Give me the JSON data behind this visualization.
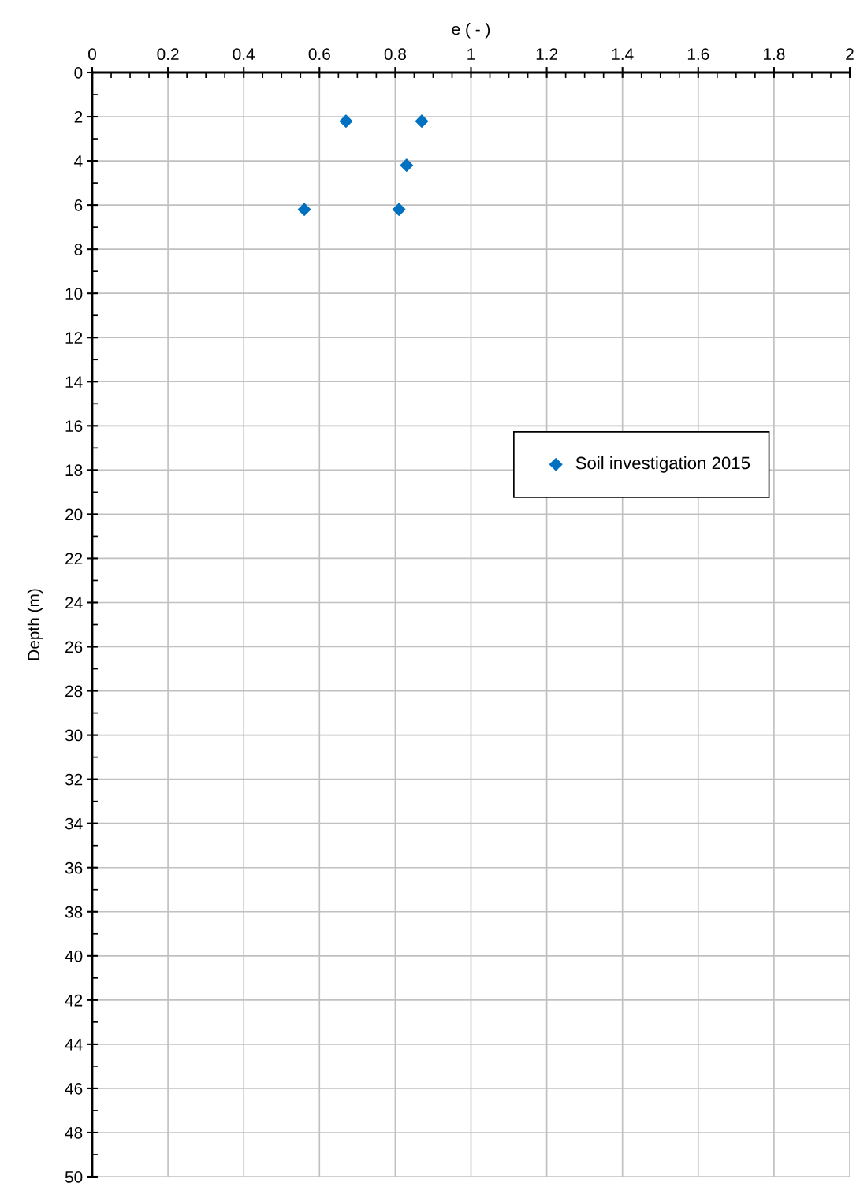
{
  "chart_data": {
    "type": "scatter",
    "xlabel": "e ( - )",
    "ylabel": "Depth (m)",
    "x": [
      0.67,
      0.87,
      0.83,
      0.56,
      0.81
    ],
    "series": [
      {
        "name": "Soil investigation 2015",
        "color": "#0070c0",
        "values": [
          2.2,
          2.2,
          4.2,
          6.2,
          6.2
        ]
      }
    ],
    "xlim": [
      0,
      2
    ],
    "xticks": [
      0,
      0.2,
      0.4,
      0.6,
      0.8,
      1,
      1.2,
      1.4,
      1.6,
      1.8,
      2
    ],
    "ylim": [
      50,
      0
    ],
    "yticks": [
      0,
      2,
      4,
      6,
      8,
      10,
      12,
      14,
      16,
      18,
      20,
      22,
      24,
      26,
      28,
      30,
      32,
      34,
      36,
      38,
      40,
      42,
      44,
      46,
      48,
      50
    ],
    "grid": true,
    "legend": "right",
    "marker": "diamond"
  }
}
